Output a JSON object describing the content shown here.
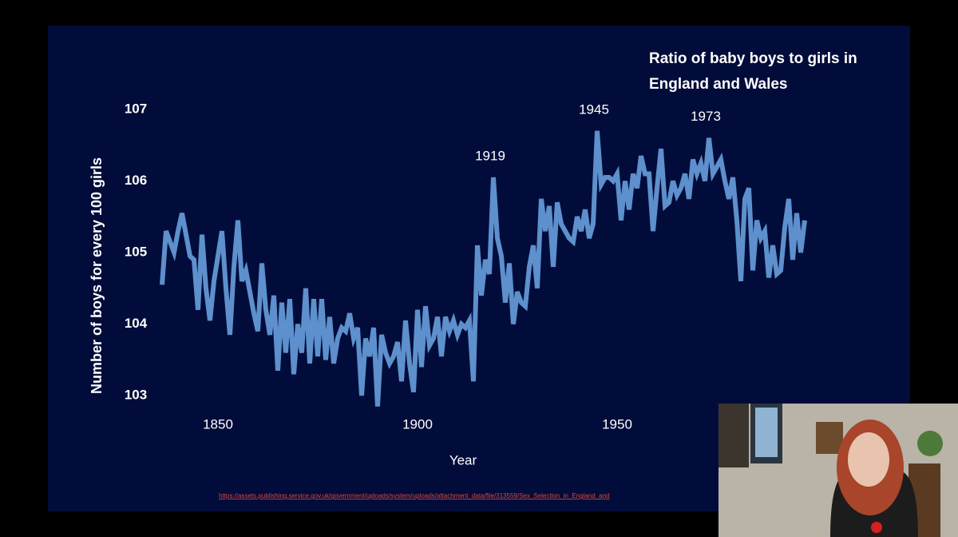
{
  "chart_data": {
    "type": "line",
    "title": "Ratio of baby boys to girls in England and Wales",
    "x_label": "Year",
    "y_label": "Number of boys for every 100 girls",
    "source": "https://assets.publishing.service.gov.uk/government/uploads/system/uploads/attachment_data/file/313559/Sex_Selection_in_England_and",
    "color": "#5d90cc",
    "x": [
      1836,
      1837,
      1838,
      1839,
      1840,
      1841,
      1842,
      1843,
      1844,
      1845,
      1846,
      1847,
      1848,
      1849,
      1850,
      1851,
      1852,
      1853,
      1854,
      1855,
      1856,
      1857,
      1858,
      1859,
      1860,
      1861,
      1862,
      1863,
      1864,
      1865,
      1866,
      1867,
      1868,
      1869,
      1870,
      1871,
      1872,
      1873,
      1874,
      1875,
      1876,
      1877,
      1878,
      1879,
      1880,
      1881,
      1882,
      1883,
      1884,
      1885,
      1886,
      1887,
      1888,
      1889,
      1890,
      1891,
      1892,
      1893,
      1894,
      1895,
      1896,
      1897,
      1898,
      1899,
      1900,
      1901,
      1902,
      1903,
      1904,
      1905,
      1906,
      1907,
      1908,
      1909,
      1910,
      1911,
      1912,
      1913,
      1914,
      1915,
      1916,
      1917,
      1918,
      1919,
      1920,
      1921,
      1922,
      1923,
      1924,
      1925,
      1926,
      1927,
      1928,
      1929,
      1930,
      1931,
      1932,
      1933,
      1934,
      1935,
      1936,
      1937,
      1938,
      1939,
      1940,
      1941,
      1942,
      1943,
      1944,
      1945,
      1946,
      1947,
      1948,
      1949,
      1950,
      1951,
      1952,
      1953,
      1954,
      1955,
      1956,
      1957,
      1958,
      1959,
      1960,
      1961,
      1962,
      1963,
      1964,
      1965,
      1966,
      1967,
      1968,
      1969,
      1970,
      1971,
      1972,
      1973,
      1974,
      1975,
      1976,
      1977,
      1978,
      1979,
      1980,
      1981,
      1982,
      1983,
      1984,
      1985,
      1986,
      1987,
      1988,
      1989,
      1990,
      1991,
      1992,
      1993,
      1994,
      1995,
      1996,
      1997
    ],
    "values": [
      104.55,
      105.3,
      105.15,
      105.0,
      105.3,
      105.55,
      105.25,
      104.95,
      104.9,
      104.2,
      105.25,
      104.5,
      104.05,
      104.6,
      104.95,
      105.3,
      104.5,
      103.85,
      104.8,
      105.45,
      104.6,
      104.75,
      104.45,
      104.15,
      103.9,
      104.85,
      104.2,
      103.85,
      104.4,
      103.35,
      104.3,
      103.6,
      104.35,
      103.3,
      104.0,
      103.6,
      104.5,
      103.45,
      104.35,
      103.55,
      104.35,
      103.5,
      104.1,
      103.45,
      103.8,
      103.95,
      103.9,
      104.15,
      103.8,
      103.95,
      103.0,
      103.8,
      103.55,
      103.95,
      102.85,
      103.85,
      103.6,
      103.45,
      103.55,
      103.75,
      103.2,
      104.05,
      103.45,
      103.05,
      104.2,
      103.4,
      104.25,
      103.7,
      103.8,
      104.1,
      103.55,
      104.1,
      103.9,
      104.05,
      103.85,
      104.0,
      103.95,
      104.05,
      103.2,
      105.1,
      104.4,
      104.9,
      104.7,
      106.05,
      105.2,
      104.95,
      104.3,
      104.85,
      104.0,
      104.45,
      104.3,
      104.25,
      104.8,
      105.1,
      104.5,
      105.75,
      105.3,
      105.65,
      104.8,
      105.7,
      105.4,
      105.3,
      105.2,
      105.15,
      105.5,
      105.3,
      105.6,
      105.2,
      105.4,
      106.7,
      105.95,
      106.05,
      106.05,
      106.0,
      106.1,
      105.45,
      106.0,
      105.6,
      106.1,
      105.9,
      106.35,
      106.1,
      106.1,
      105.3,
      105.9,
      106.45,
      105.65,
      105.7,
      106.0,
      105.8,
      105.9,
      106.1,
      105.75,
      106.3,
      106.1,
      106.25,
      106.0,
      106.6,
      106.1,
      106.2,
      106.3,
      106.0,
      105.75,
      106.05,
      105.45,
      104.6,
      105.75,
      105.9,
      104.75,
      105.45,
      105.2,
      105.3,
      104.65,
      105.1,
      104.7,
      104.75,
      105.35,
      105.75,
      104.9,
      105.55,
      105.0,
      105.45
    ],
    "xlim": [
      1822,
      2009
    ],
    "xticks": [
      1850,
      1900,
      1950
    ],
    "ylim": [
      102.7,
      107.2
    ],
    "yticks": [
      103,
      104,
      105,
      106,
      107
    ],
    "annotations": [
      {
        "label": "1919",
        "x": 1919
      },
      {
        "label": "1945",
        "x": 1945
      },
      {
        "label": "1973",
        "x": 1973
      }
    ]
  }
}
